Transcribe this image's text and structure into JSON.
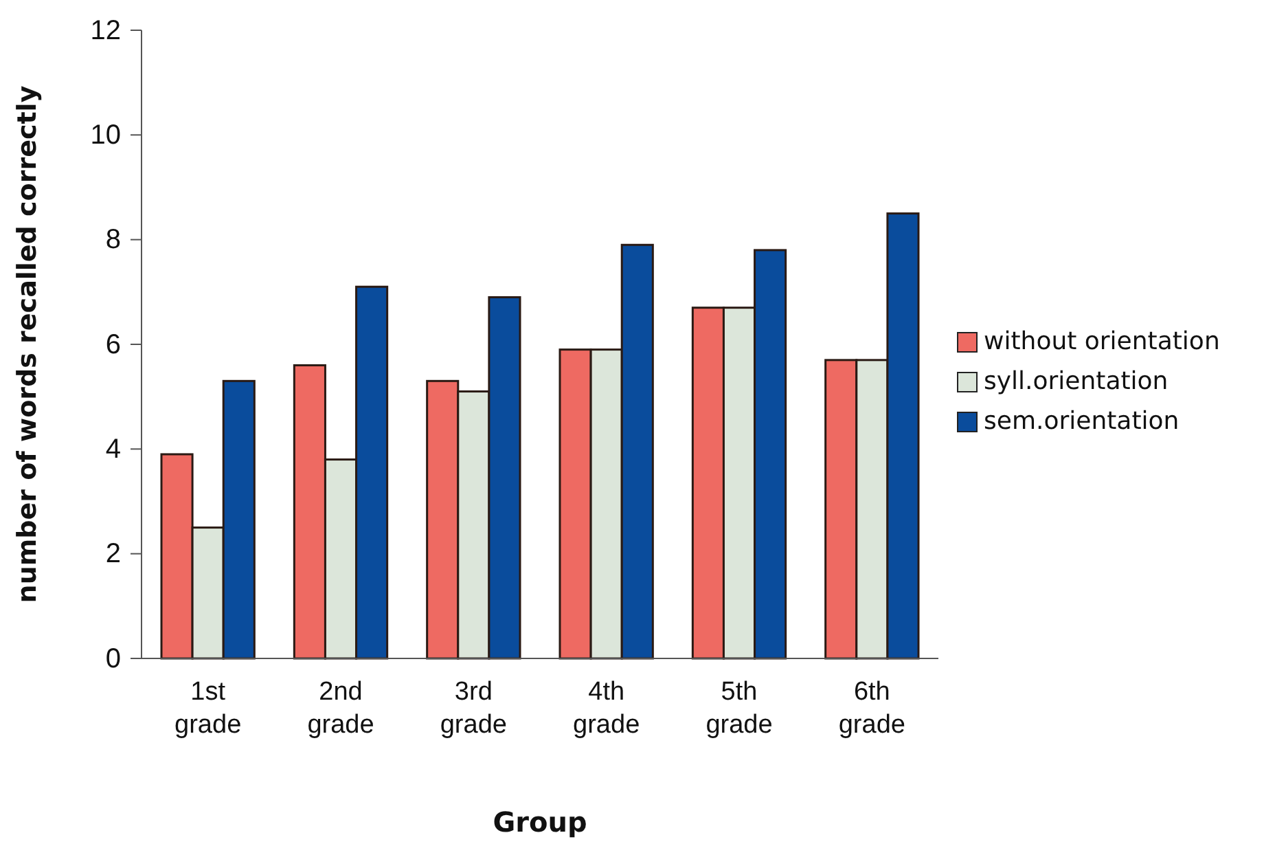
{
  "chart_data": {
    "type": "bar",
    "xlabel": "Group",
    "ylabel": "number of words recalled correctly",
    "categories": [
      "1st grade",
      "2nd grade",
      "3rd grade",
      "4th grade",
      "5th grade",
      "6th grade"
    ],
    "series": [
      {
        "name": "without orientation",
        "color": "#ee6a62",
        "values": [
          3.9,
          5.6,
          5.3,
          5.9,
          6.7,
          5.7
        ]
      },
      {
        "name": "syll.orientation",
        "color": "#dce6da",
        "values": [
          2.5,
          3.8,
          5.1,
          5.9,
          6.7,
          5.7
        ]
      },
      {
        "name": "sem.orientation",
        "color": "#0a4c9c",
        "values": [
          5.3,
          7.1,
          6.9,
          7.9,
          7.8,
          8.5
        ]
      }
    ],
    "ylim": [
      0,
      12
    ],
    "yticks": [
      0,
      2,
      4,
      6,
      8,
      10,
      12
    ],
    "grid": false,
    "legend": "right"
  }
}
